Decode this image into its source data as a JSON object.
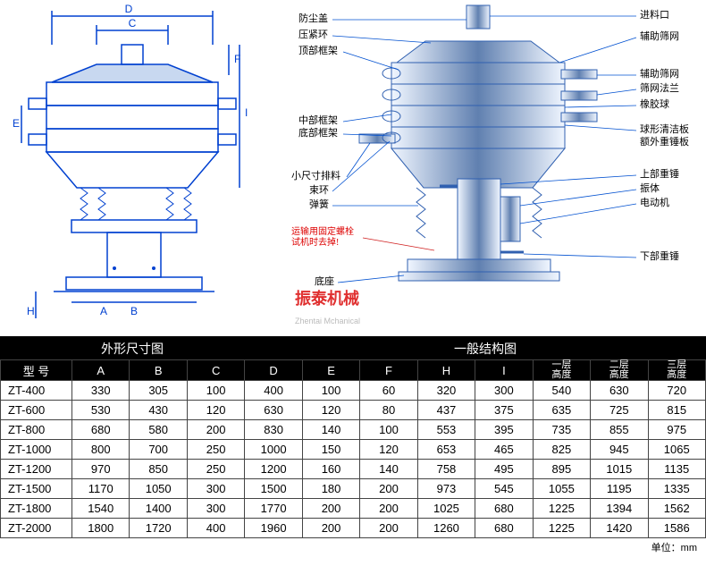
{
  "tabs": {
    "left": "外形尺寸图",
    "right": "一般结构图"
  },
  "logo": {
    "brand": "振泰机械",
    "sub": "Zhentai Mchanical"
  },
  "dim_labels": {
    "A": "A",
    "B": "B",
    "C": "C",
    "D": "D",
    "E": "E",
    "F": "F",
    "H": "H",
    "I": "I"
  },
  "parts_left": {
    "dust_cover": "防尘盖",
    "clamp_ring": "压紧环",
    "top_frame": "顶部框架",
    "mid_frame": "中部框架",
    "bot_frame": "底部框架",
    "small_outlet": "小尺寸排料",
    "bundle_ring": "束环",
    "spring": "弹簧",
    "note1": "运输用固定螺栓",
    "note2": "试机时去掉!",
    "base": "底座"
  },
  "parts_right": {
    "inlet": "进料口",
    "aux_screen1": "辅助筛网",
    "aux_screen2": "辅助筛网",
    "mesh_flange": "筛网法兰",
    "rubber_ball": "橡胶球",
    "ball_plate": "球形清洁板",
    "upper_hammer_plate": "额外重锤板",
    "upper_hammer": "上部重锤",
    "vibrator": "振体",
    "motor": "电动机",
    "lower_hammer": "下部重锤"
  },
  "table": {
    "headers": [
      "型 号",
      "A",
      "B",
      "C",
      "D",
      "E",
      "F",
      "H",
      "I",
      "一层\n高度",
      "二层\n高度",
      "三层\n高度"
    ],
    "rows": [
      [
        "ZT-400",
        "330",
        "305",
        "100",
        "400",
        "100",
        "60",
        "320",
        "300",
        "540",
        "630",
        "720"
      ],
      [
        "ZT-600",
        "530",
        "430",
        "120",
        "630",
        "120",
        "80",
        "437",
        "375",
        "635",
        "725",
        "815"
      ],
      [
        "ZT-800",
        "680",
        "580",
        "200",
        "830",
        "140",
        "100",
        "553",
        "395",
        "735",
        "855",
        "975"
      ],
      [
        "ZT-1000",
        "800",
        "700",
        "250",
        "1000",
        "150",
        "120",
        "653",
        "465",
        "825",
        "945",
        "1065"
      ],
      [
        "ZT-1200",
        "970",
        "850",
        "250",
        "1200",
        "160",
        "140",
        "758",
        "495",
        "895",
        "1015",
        "1135"
      ],
      [
        "ZT-1500",
        "1170",
        "1050",
        "300",
        "1500",
        "180",
        "200",
        "973",
        "545",
        "1055",
        "1195",
        "1335"
      ],
      [
        "ZT-1800",
        "1540",
        "1400",
        "300",
        "1770",
        "200",
        "200",
        "1025",
        "680",
        "1225",
        "1394",
        "1562"
      ],
      [
        "ZT-2000",
        "1800",
        "1720",
        "400",
        "1960",
        "200",
        "200",
        "1260",
        "680",
        "1225",
        "1420",
        "1586"
      ]
    ],
    "unit": "单位：mm"
  },
  "colors": {
    "line": "#0040d0",
    "fill": "#c8d8f0",
    "grad1": "#f0f6ff",
    "grad2": "#7090c0",
    "red": "#d02020"
  }
}
